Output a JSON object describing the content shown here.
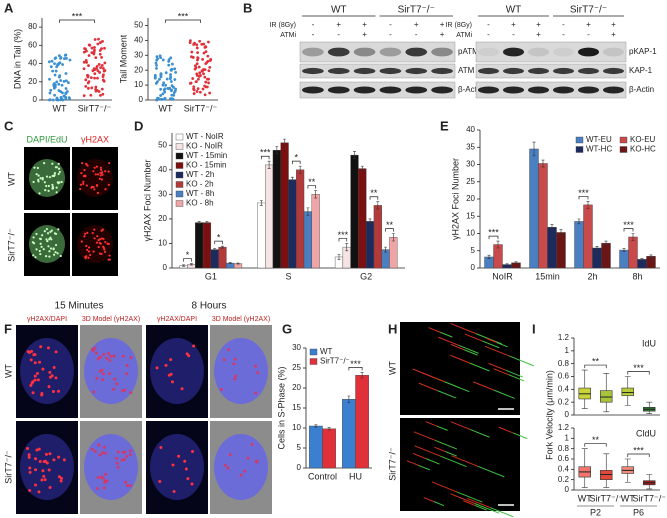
{
  "panels": {
    "letters": [
      "A",
      "B",
      "C",
      "D",
      "E",
      "F",
      "G",
      "H",
      "I"
    ],
    "B": {
      "left": {
        "groups": [
          "WT",
          "SirT7⁻/⁻"
        ],
        "rows": [
          {
            "label": "IR (8Gy)",
            "signs": [
              "-",
              "+",
              "+",
              "-",
              "+",
              "+"
            ]
          },
          {
            "label": "ATMi",
            "signs": [
              "-",
              "-",
              "+",
              "-",
              "-",
              "+"
            ]
          }
        ],
        "bands": [
          "pATM",
          "ATM",
          "β-Actin"
        ]
      },
      "right": {
        "groups": [
          "WT",
          "SirT7⁻/⁻"
        ],
        "rows": [
          {
            "label": "IR (8Gy)",
            "signs": [
              "-",
              "+",
              "+",
              "-",
              "+",
              "+"
            ]
          },
          {
            "label": "ATMi",
            "signs": [
              "-",
              "-",
              "+",
              "-",
              "-",
              "+"
            ]
          }
        ],
        "bands": [
          "pKAP-1",
          "KAP-1",
          "β-Actin"
        ]
      }
    },
    "C": {
      "columns": [
        "DAPI/EdU",
        "γH2AX"
      ],
      "rows": [
        "WT",
        "SirT7⁻/⁻"
      ]
    },
    "F": {
      "times": [
        "15 Minutes",
        "8 Hours"
      ],
      "columns": [
        "γH2AX/DAPI",
        "3D Model (γH2AX)",
        "γH2AX/DAPI",
        "3D Model (γH2AX)"
      ],
      "rows": [
        "WT",
        "SirT7⁻/⁻"
      ]
    },
    "H": {
      "rows": [
        "WT",
        "SirT7⁻/⁻"
      ]
    },
    "I": {
      "ylabel": "Fork Velocity (μm/min)"
    }
  },
  "chart_data": [
    {
      "type": "strip",
      "ylabel": "DNA in Tail (%)",
      "categories": [
        "WT",
        "SirT7⁻/⁻"
      ],
      "colors": [
        "#3a8fd0",
        "#e0303a"
      ],
      "ylim": [
        0,
        90
      ],
      "yticks": [
        0,
        20,
        40,
        60,
        80
      ],
      "annotations": [
        "***"
      ]
    },
    {
      "type": "strip",
      "ylabel": "Tail Moment",
      "categories": [
        "WT",
        "SirT7⁻/⁻"
      ],
      "colors": [
        "#3a8fd0",
        "#e0303a"
      ],
      "ylim": [
        0,
        55
      ],
      "yticks": [
        0,
        10,
        20,
        30,
        40,
        50
      ],
      "annotations": [
        "***"
      ]
    },
    {
      "type": "bar",
      "ylabel": "γH2AX Foci Number",
      "categories": [
        "G1",
        "S",
        "G2"
      ],
      "ylim": [
        0,
        55
      ],
      "yticks": [
        0,
        10,
        20,
        30,
        40,
        50
      ],
      "legend": "upper left",
      "series": [
        {
          "name": "WT - NoIR",
          "color": "#ffffff",
          "values": [
            1,
            26.5,
            4.5
          ],
          "errors": [
            0.3,
            1,
            1
          ]
        },
        {
          "name": "KO - NoIR",
          "color": "#f6e4e4",
          "values": [
            1.5,
            42,
            8.5
          ],
          "errors": [
            0.3,
            1.5,
            1.5
          ]
        },
        {
          "name": "WT - 15min",
          "color": "#111111",
          "values": [
            18.5,
            48,
            46
          ],
          "errors": [
            0.4,
            1.5,
            1.5
          ]
        },
        {
          "name": "KO - 15min",
          "color": "#7a1010",
          "values": [
            18.5,
            51,
            40.5
          ],
          "errors": [
            0.4,
            1.5,
            1
          ]
        },
        {
          "name": "WT - 2h",
          "color": "#1c2a5e",
          "values": [
            7.5,
            36,
            19
          ],
          "errors": [
            0.4,
            1,
            1
          ]
        },
        {
          "name": "KO - 2h",
          "color": "#b33a3a",
          "values": [
            8.5,
            40,
            25.5
          ],
          "errors": [
            0.4,
            1.5,
            1.5
          ]
        },
        {
          "name": "WT - 8h",
          "color": "#4a7fc1",
          "values": [
            2,
            23,
            7.5
          ],
          "errors": [
            0.2,
            1.5,
            1
          ]
        },
        {
          "name": "KO - 8h",
          "color": "#efa5a5",
          "values": [
            1.8,
            30,
            12.5
          ],
          "errors": [
            0.2,
            1.5,
            1.5
          ]
        }
      ],
      "annotations": [
        "*",
        "*",
        "***",
        "*",
        "**",
        "***",
        "**",
        "**"
      ]
    },
    {
      "type": "bar",
      "ylabel": "γH2AX Foci Number",
      "categories": [
        "NoIR",
        "15min",
        "2h",
        "8h"
      ],
      "ylim": [
        0,
        40
      ],
      "yticks": [
        0,
        5,
        10,
        15,
        20,
        25,
        30,
        35,
        40
      ],
      "legend": "upper right",
      "series": [
        {
          "name": "WT-EU",
          "color": "#4a7fc1",
          "values": [
            3.2,
            34.5,
            13.5,
            5.2
          ],
          "errors": [
            0.5,
            2,
            0.7,
            0.4
          ]
        },
        {
          "name": "KO-EU",
          "color": "#c94a4a",
          "values": [
            6.8,
            30.3,
            18.3,
            9
          ],
          "errors": [
            1,
            1,
            1,
            1
          ]
        },
        {
          "name": "WT-HC",
          "color": "#1c2a5e",
          "values": [
            1,
            11.8,
            5.8,
            2.5
          ],
          "errors": [
            0.2,
            0.8,
            0.5,
            0.3
          ]
        },
        {
          "name": "KO-HC",
          "color": "#6a1616",
          "values": [
            1.5,
            10.3,
            7.2,
            3.4
          ],
          "errors": [
            0.3,
            0.8,
            0.6,
            0.4
          ]
        }
      ],
      "annotations": [
        "***",
        "***",
        "***"
      ]
    },
    {
      "type": "bar",
      "ylabel": "Cells in S-Phase (%)",
      "categories": [
        "Control",
        "HU"
      ],
      "ylim": [
        0,
        30
      ],
      "yticks": [
        0,
        5,
        10,
        15,
        20,
        25,
        30
      ],
      "legend": "upper left",
      "series": [
        {
          "name": "WT",
          "color": "#3a7fd0",
          "values": [
            10.5,
            17.2
          ],
          "errors": [
            0.3,
            0.8
          ]
        },
        {
          "name": "SirT7⁻/⁻",
          "color": "#e0303a",
          "values": [
            9.8,
            23.2
          ],
          "errors": [
            0.3,
            0.7
          ]
        }
      ],
      "annotations": [
        "***"
      ]
    },
    {
      "type": "box",
      "title": "IdU",
      "ylim": [
        0,
        1.2
      ],
      "yticks": [
        0,
        0.2,
        0.4,
        0.6,
        0.8,
        1,
        1.2
      ],
      "colors": [
        "#c8d43a",
        "#a8c43a",
        "#b8cc3a",
        "#2f7a2f"
      ],
      "boxes": [
        {
          "min": 0.1,
          "q1": 0.25,
          "median": 0.33,
          "q3": 0.42,
          "max": 0.7
        },
        {
          "min": 0.05,
          "q1": 0.2,
          "median": 0.28,
          "q3": 0.38,
          "max": 0.65
        },
        {
          "min": 0.15,
          "q1": 0.3,
          "median": 0.35,
          "q3": 0.42,
          "max": 0.6
        },
        {
          "min": 0.02,
          "q1": 0.06,
          "median": 0.09,
          "q3": 0.12,
          "max": 0.2
        }
      ],
      "annotations": [
        "**",
        "***"
      ]
    },
    {
      "type": "box",
      "title": "CldU",
      "categories": [
        "WT",
        "SirT7⁻/⁻",
        "WT",
        "SirT7⁻/⁻"
      ],
      "groups": [
        "P2",
        "P6"
      ],
      "ylim": [
        0,
        1.2
      ],
      "yticks": [
        0,
        0.2,
        0.4,
        0.6,
        0.8,
        1,
        1.2
      ],
      "colors": [
        "#f0756a",
        "#e04a3a",
        "#f08a7a",
        "#a81c1c"
      ],
      "boxes": [
        {
          "min": 0.05,
          "q1": 0.25,
          "median": 0.35,
          "q3": 0.45,
          "max": 0.8
        },
        {
          "min": 0.05,
          "q1": 0.2,
          "median": 0.3,
          "q3": 0.38,
          "max": 0.7
        },
        {
          "min": 0.15,
          "q1": 0.32,
          "median": 0.38,
          "q3": 0.45,
          "max": 0.6
        },
        {
          "min": 0.02,
          "q1": 0.1,
          "median": 0.14,
          "q3": 0.18,
          "max": 0.3
        }
      ],
      "annotations": [
        "**",
        "***"
      ]
    }
  ]
}
